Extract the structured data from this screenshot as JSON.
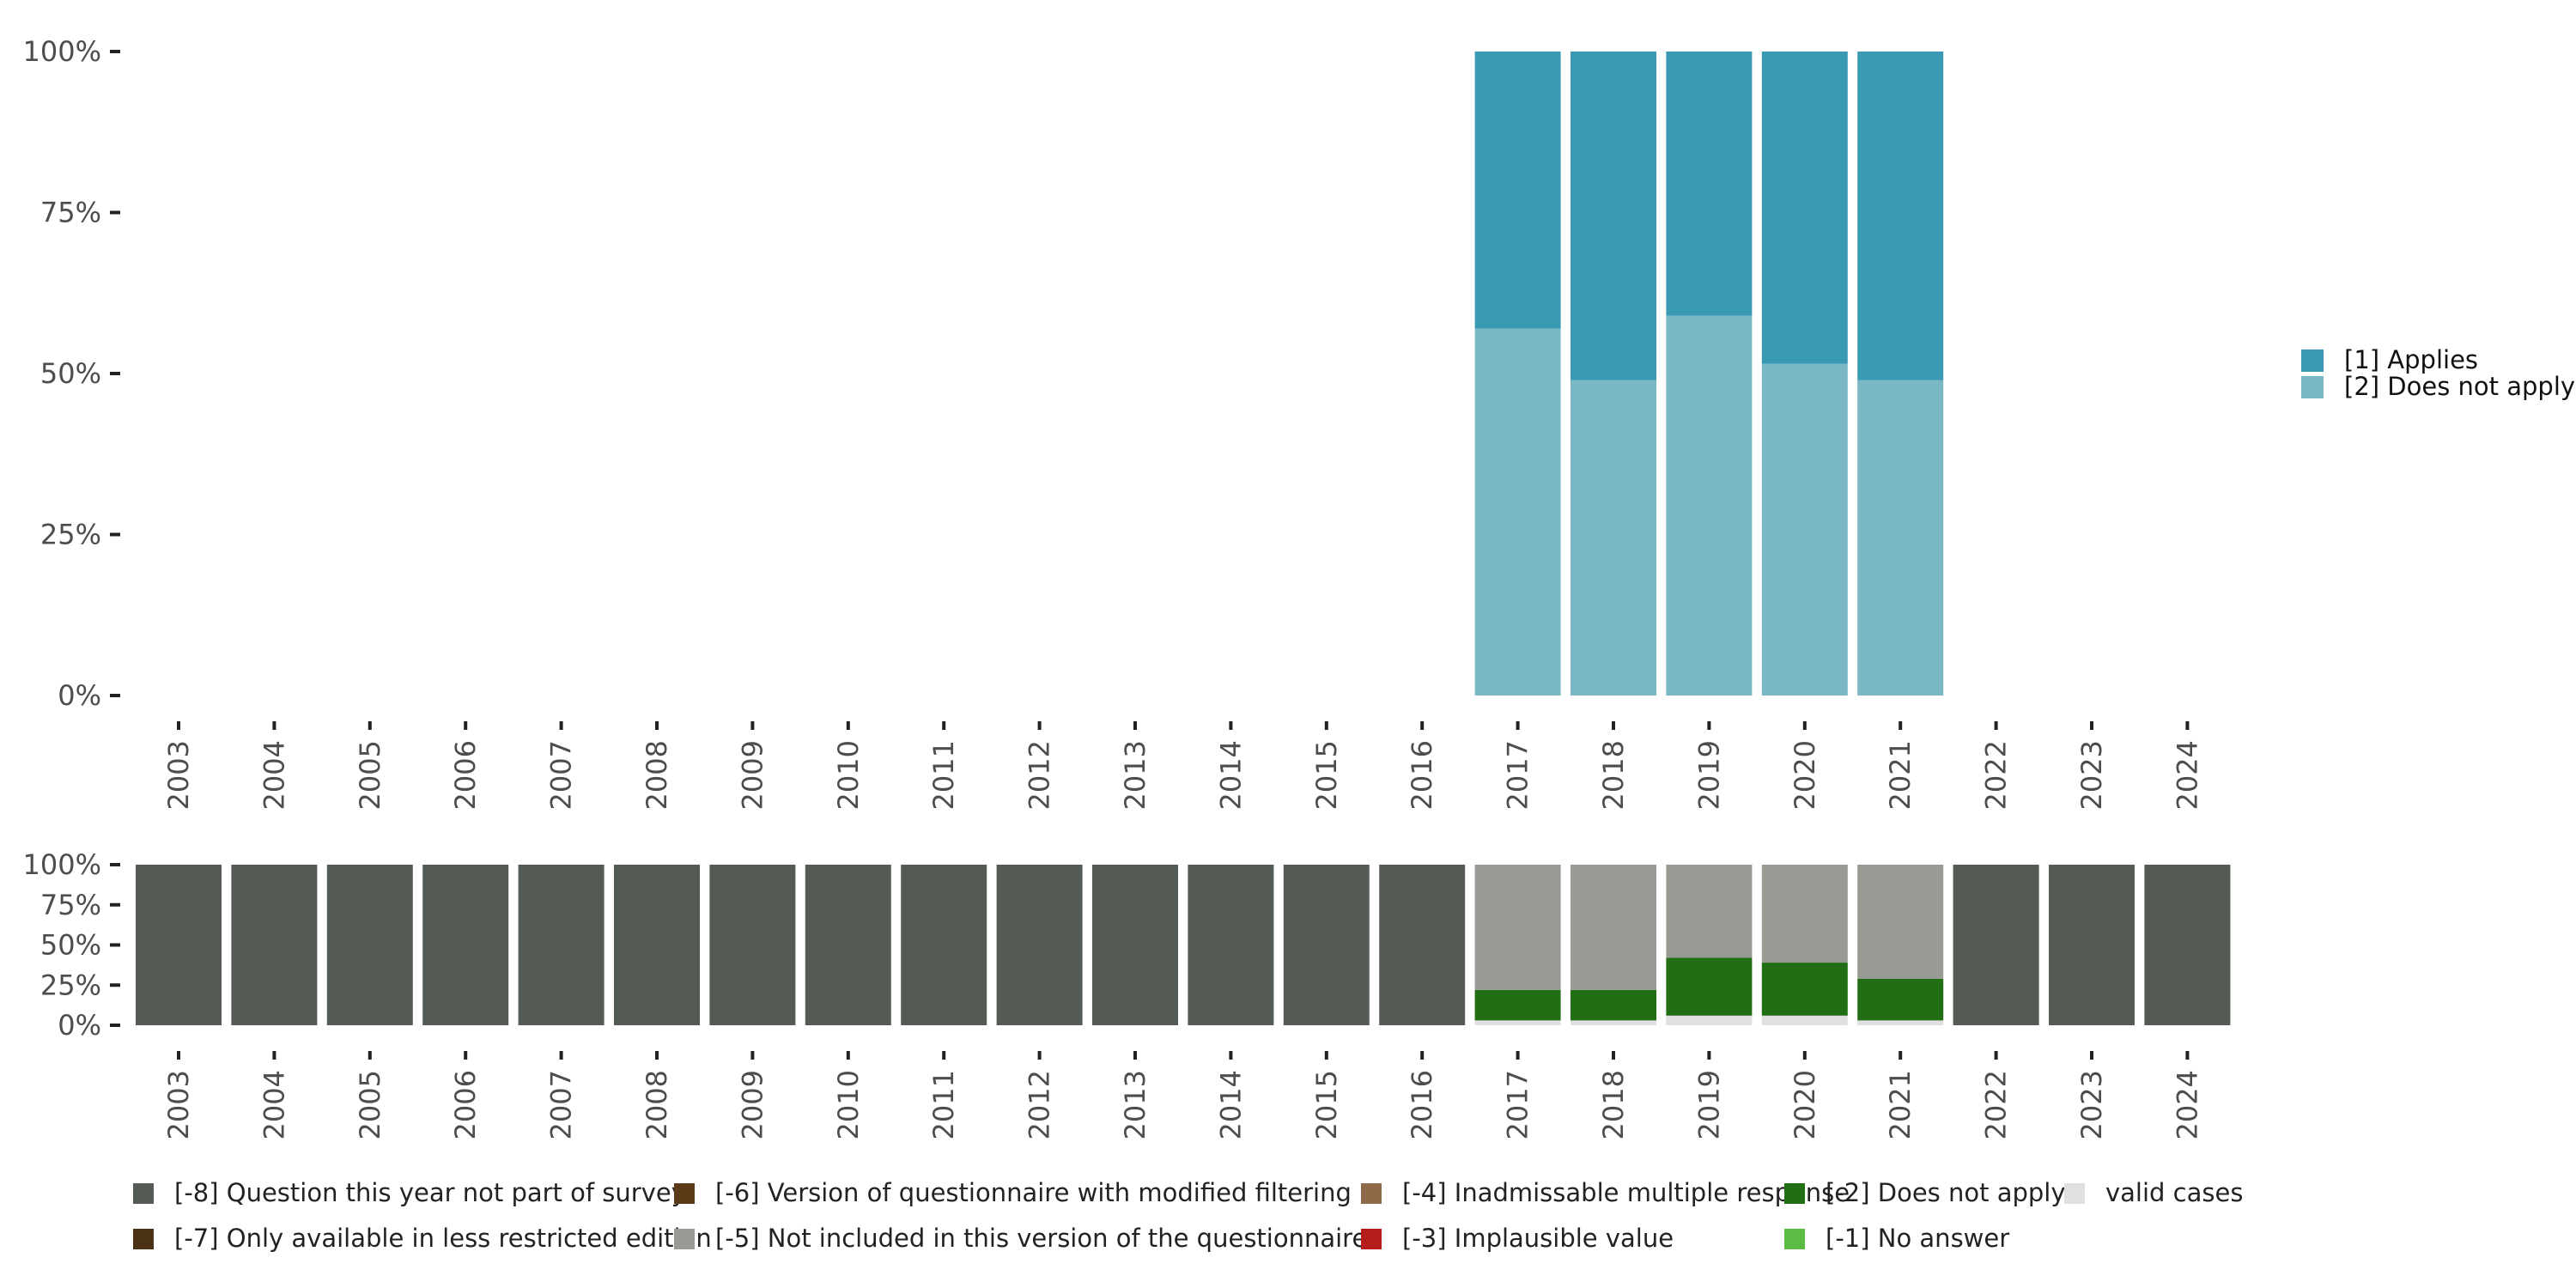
{
  "chart_data": [
    {
      "type": "bar",
      "stacked": true,
      "categories": [
        "2003",
        "2004",
        "2005",
        "2006",
        "2007",
        "2008",
        "2009",
        "2010",
        "2011",
        "2012",
        "2013",
        "2014",
        "2015",
        "2016",
        "2017",
        "2018",
        "2019",
        "2020",
        "2021",
        "2022",
        "2023",
        "2024"
      ],
      "ylim": [
        0,
        100
      ],
      "y_ticks": [
        "0%",
        "25%",
        "50%",
        "75%",
        "100%"
      ],
      "legend_position": "right",
      "series": [
        {
          "name": "[2] Does not apply",
          "color": "#79b7c5",
          "values": [
            null,
            null,
            null,
            null,
            null,
            null,
            null,
            null,
            null,
            null,
            null,
            null,
            null,
            null,
            57,
            49,
            59,
            51.5,
            49,
            null,
            null,
            null
          ]
        },
        {
          "name": "[1] Applies",
          "color": "#3a9ab3",
          "values": [
            null,
            null,
            null,
            null,
            null,
            null,
            null,
            null,
            null,
            null,
            null,
            null,
            null,
            null,
            43,
            51,
            41,
            48.5,
            51,
            null,
            null,
            null
          ]
        }
      ]
    },
    {
      "type": "bar",
      "stacked": true,
      "categories": [
        "2003",
        "2004",
        "2005",
        "2006",
        "2007",
        "2008",
        "2009",
        "2010",
        "2011",
        "2012",
        "2013",
        "2014",
        "2015",
        "2016",
        "2017",
        "2018",
        "2019",
        "2020",
        "2021",
        "2022",
        "2023",
        "2024"
      ],
      "ylim": [
        0,
        100
      ],
      "y_ticks": [
        "0%",
        "25%",
        "50%",
        "75%",
        "100%"
      ],
      "legend_position": "bottom",
      "series": [
        {
          "name": "valid cases",
          "color": "#dfe0df",
          "values": [
            0,
            0,
            0,
            0,
            0,
            0,
            0,
            0,
            0,
            0,
            0,
            0,
            0,
            0,
            3,
            3,
            6,
            6,
            3,
            0,
            0,
            0
          ]
        },
        {
          "name": "[-2] Does not apply",
          "color": "#226e14",
          "values": [
            0,
            0,
            0,
            0,
            0,
            0,
            0,
            0,
            0,
            0,
            0,
            0,
            0,
            0,
            19,
            19,
            36,
            33,
            26,
            0,
            0,
            0
          ]
        },
        {
          "name": "[-5] Not included in this version of the questionnaire",
          "color": "#989b94",
          "values": [
            0,
            0,
            0,
            0,
            0,
            0,
            0,
            0,
            0,
            0,
            0,
            0,
            0,
            0,
            78,
            78,
            58,
            61,
            71,
            0,
            0,
            0
          ]
        },
        {
          "name": "[-8] Question this year not part of survey",
          "color": "#545b54",
          "values": [
            100,
            100,
            100,
            100,
            100,
            100,
            100,
            100,
            100,
            100,
            100,
            100,
            100,
            100,
            0,
            0,
            0,
            0,
            0,
            100,
            100,
            100
          ]
        }
      ],
      "legend": [
        {
          "name": "[-8] Question this year not part of survey",
          "color": "#545b54"
        },
        {
          "name": "[-7] Only available in less restricted edition",
          "color": "#4a3015"
        },
        {
          "name": "[-6] Version of questionnaire with modified filtering",
          "color": "#5c3a17"
        },
        {
          "name": "[-5] Not included in this version of the questionnaire",
          "color": "#989b94"
        },
        {
          "name": "[-4] Inadmissable multiple response",
          "color": "#8f6a48"
        },
        {
          "name": "[-3] Implausible value",
          "color": "#b71c1c"
        },
        {
          "name": "[-2] Does not apply",
          "color": "#226e14"
        },
        {
          "name": "[-1] No answer",
          "color": "#5bbc45"
        },
        {
          "name": "valid cases",
          "color": "#dfe0df"
        }
      ]
    }
  ]
}
